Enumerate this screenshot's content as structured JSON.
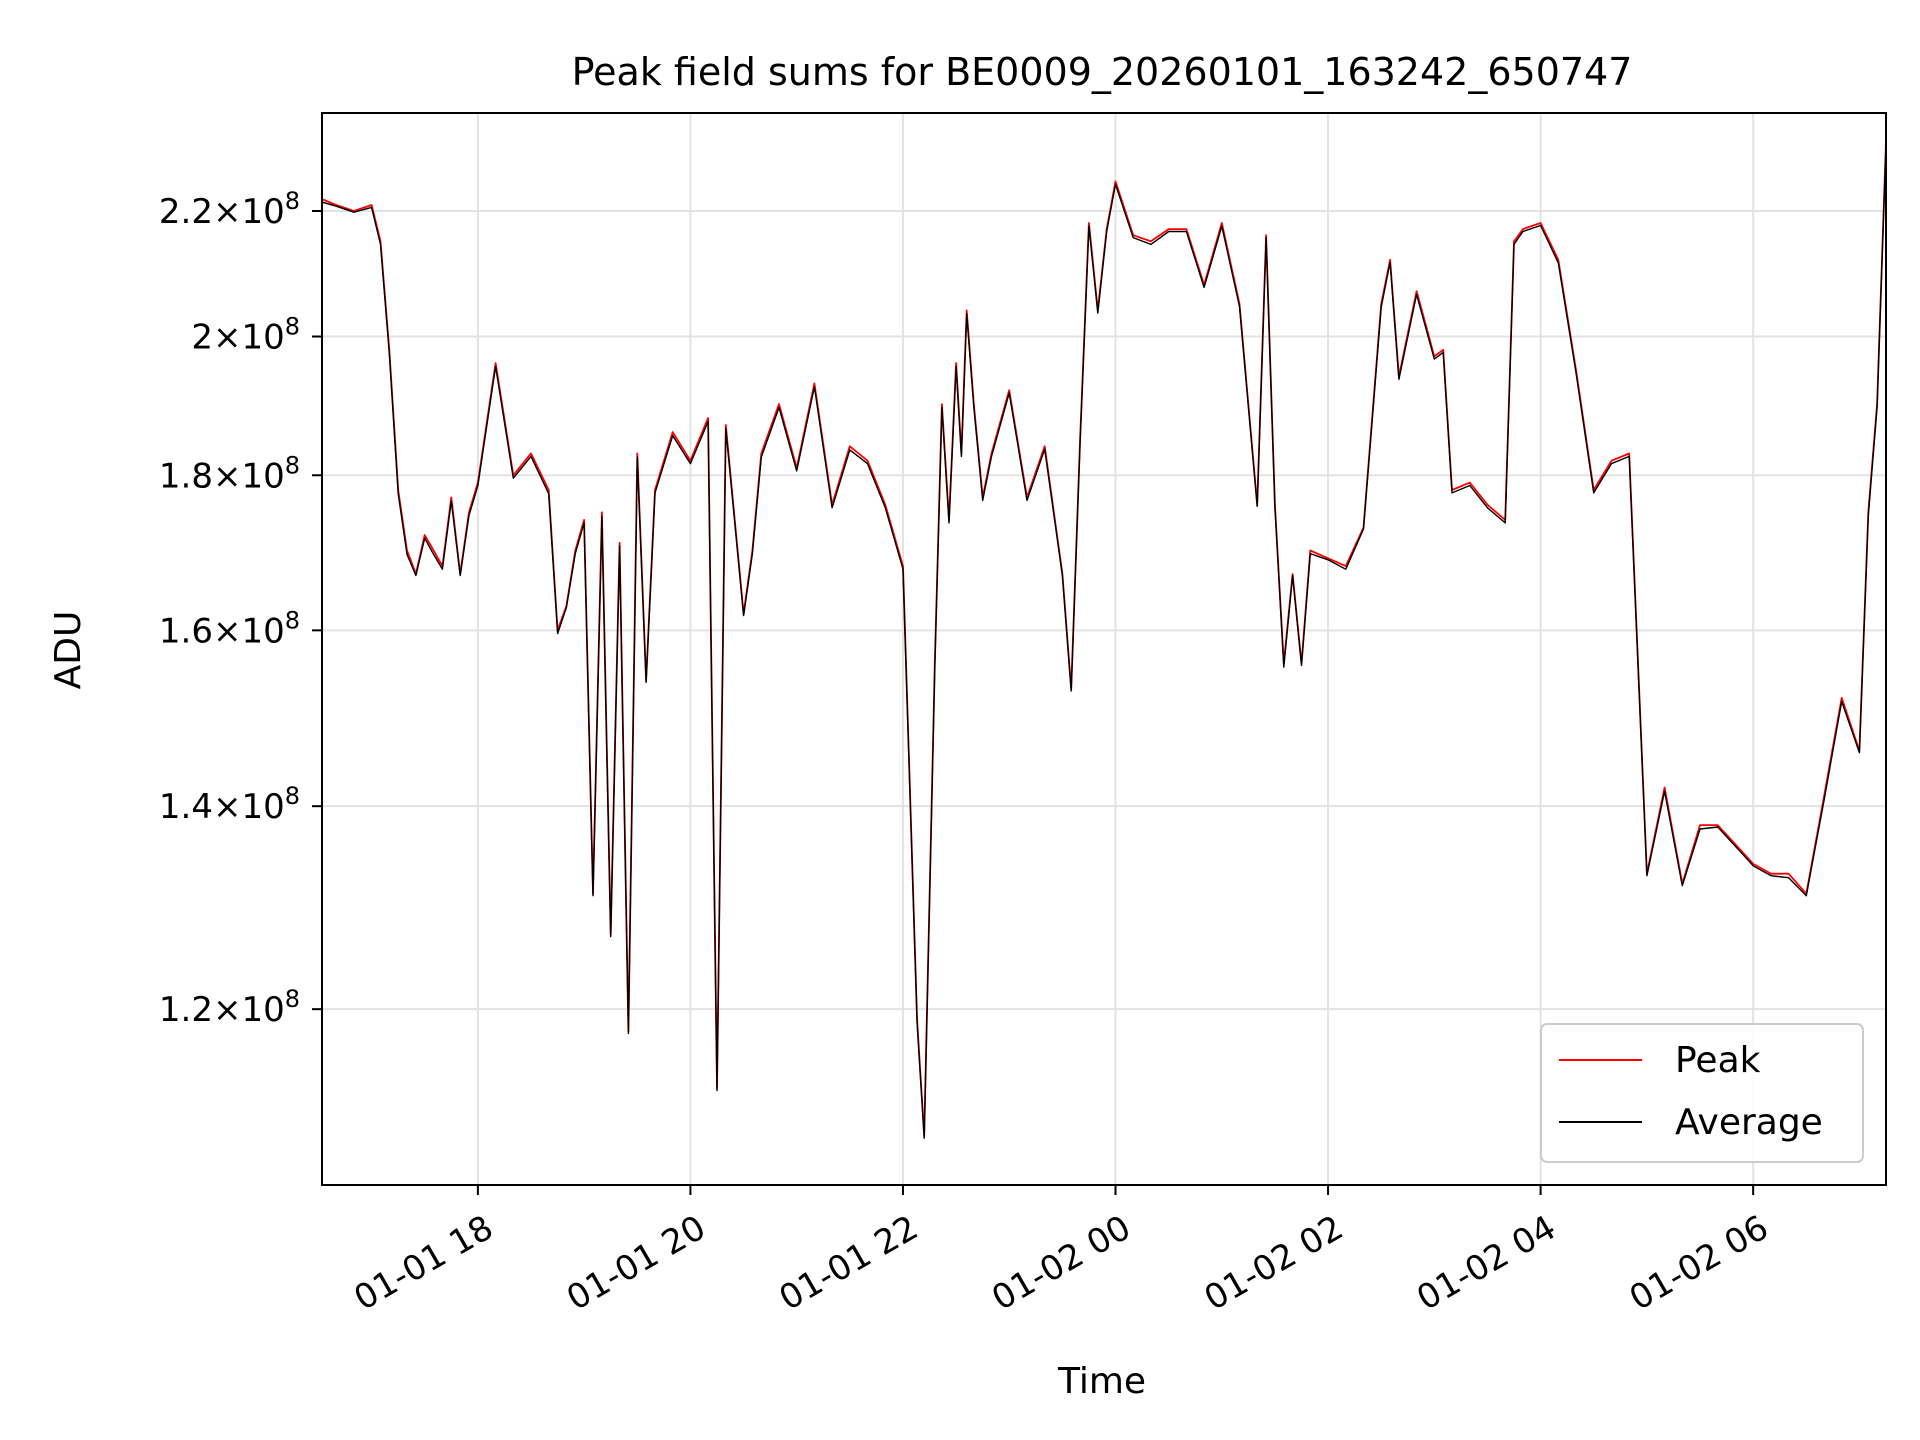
{
  "chart_data": {
    "type": "line",
    "title": "Peak field sums for BE0009_20260101_163242_650747",
    "xlabel": "Time",
    "ylabel": "ADU",
    "x_range": [
      "2026-01-01 16:32",
      "2026-01-02 07:15"
    ],
    "ylim": [
      105000000,
      237000000
    ],
    "yscale": "log",
    "grid": true,
    "legend_position": "lower-right",
    "x_ticks": [
      {
        "value": "2026-01-01 18:00",
        "label": "01-01 18"
      },
      {
        "value": "2026-01-01 20:00",
        "label": "01-01 20"
      },
      {
        "value": "2026-01-01 22:00",
        "label": "01-01 22"
      },
      {
        "value": "2026-01-02 00:00",
        "label": "01-02 00"
      },
      {
        "value": "2026-01-02 02:00",
        "label": "01-02 02"
      },
      {
        "value": "2026-01-02 04:00",
        "label": "01-02 04"
      },
      {
        "value": "2026-01-02 06:00",
        "label": "01-02 06"
      }
    ],
    "y_ticks": [
      {
        "value": 120000000,
        "mantissa": "1.2",
        "exp": "8"
      },
      {
        "value": 140000000,
        "mantissa": "1.4",
        "exp": "8"
      },
      {
        "value": 160000000,
        "mantissa": "1.6",
        "exp": "8"
      },
      {
        "value": 180000000,
        "mantissa": "1.8",
        "exp": "8"
      },
      {
        "value": 200000000,
        "mantissa": "2",
        "exp": "8"
      },
      {
        "value": 220000000,
        "mantissa": "2.2",
        "exp": "8"
      }
    ],
    "x": [
      "2026-01-01 16:32",
      "2026-01-01 16:40",
      "2026-01-01 16:50",
      "2026-01-01 17:00",
      "2026-01-01 17:05",
      "2026-01-01 17:10",
      "2026-01-01 17:15",
      "2026-01-01 17:20",
      "2026-01-01 17:25",
      "2026-01-01 17:30",
      "2026-01-01 17:35",
      "2026-01-01 17:40",
      "2026-01-01 17:45",
      "2026-01-01 17:50",
      "2026-01-01 17:55",
      "2026-01-01 18:00",
      "2026-01-01 18:10",
      "2026-01-01 18:20",
      "2026-01-01 18:30",
      "2026-01-01 18:40",
      "2026-01-01 18:45",
      "2026-01-01 18:50",
      "2026-01-01 18:55",
      "2026-01-01 19:00",
      "2026-01-01 19:05",
      "2026-01-01 19:10",
      "2026-01-01 19:15",
      "2026-01-01 19:20",
      "2026-01-01 19:25",
      "2026-01-01 19:30",
      "2026-01-01 19:35",
      "2026-01-01 19:40",
      "2026-01-01 19:50",
      "2026-01-01 20:00",
      "2026-01-01 20:10",
      "2026-01-01 20:15",
      "2026-01-01 20:20",
      "2026-01-01 20:30",
      "2026-01-01 20:35",
      "2026-01-01 20:40",
      "2026-01-01 20:50",
      "2026-01-01 21:00",
      "2026-01-01 21:10",
      "2026-01-01 21:20",
      "2026-01-01 21:30",
      "2026-01-01 21:40",
      "2026-01-01 21:50",
      "2026-01-01 22:00",
      "2026-01-01 22:08",
      "2026-01-01 22:12",
      "2026-01-01 22:18",
      "2026-01-01 22:22",
      "2026-01-01 22:26",
      "2026-01-01 22:30",
      "2026-01-01 22:33",
      "2026-01-01 22:36",
      "2026-01-01 22:40",
      "2026-01-01 22:45",
      "2026-01-01 22:50",
      "2026-01-01 23:00",
      "2026-01-01 23:10",
      "2026-01-01 23:20",
      "2026-01-01 23:30",
      "2026-01-01 23:35",
      "2026-01-01 23:40",
      "2026-01-01 23:45",
      "2026-01-01 23:50",
      "2026-01-01 23:55",
      "2026-01-02 00:00",
      "2026-01-02 00:10",
      "2026-01-02 00:20",
      "2026-01-02 00:30",
      "2026-01-02 00:40",
      "2026-01-02 00:50",
      "2026-01-02 01:00",
      "2026-01-02 01:10",
      "2026-01-02 01:20",
      "2026-01-02 01:25",
      "2026-01-02 01:30",
      "2026-01-02 01:35",
      "2026-01-02 01:40",
      "2026-01-02 01:45",
      "2026-01-02 01:50",
      "2026-01-02 02:00",
      "2026-01-02 02:10",
      "2026-01-02 02:20",
      "2026-01-02 02:30",
      "2026-01-02 02:35",
      "2026-01-02 02:40",
      "2026-01-02 02:50",
      "2026-01-02 03:00",
      "2026-01-02 03:05",
      "2026-01-02 03:10",
      "2026-01-02 03:20",
      "2026-01-02 03:30",
      "2026-01-02 03:40",
      "2026-01-02 03:45",
      "2026-01-02 03:50",
      "2026-01-02 04:00",
      "2026-01-02 04:10",
      "2026-01-02 04:20",
      "2026-01-02 04:30",
      "2026-01-02 04:40",
      "2026-01-02 04:50",
      "2026-01-02 05:00",
      "2026-01-02 05:10",
      "2026-01-02 05:20",
      "2026-01-02 05:30",
      "2026-01-02 05:40",
      "2026-01-02 05:50",
      "2026-01-02 06:00",
      "2026-01-02 06:10",
      "2026-01-02 06:20",
      "2026-01-02 06:30",
      "2026-01-02 06:40",
      "2026-01-02 06:50",
      "2026-01-02 07:00",
      "2026-01-02 07:05",
      "2026-01-02 07:10",
      "2026-01-02 07:15"
    ],
    "series": [
      {
        "name": "Peak",
        "color": "#ff0000",
        "values": [
          222,
          221,
          220,
          221,
          215,
          198,
          178,
          170,
          167,
          172,
          170,
          168,
          177,
          167,
          175,
          179,
          196,
          180,
          183,
          178,
          160,
          163,
          170,
          174,
          131,
          175,
          127,
          171,
          118,
          183,
          154,
          178,
          186,
          182,
          188,
          113,
          187,
          162,
          170,
          183,
          190,
          181,
          193,
          176,
          184,
          182,
          176,
          168,
          119,
          109,
          156,
          190,
          174,
          196,
          183,
          204,
          190,
          177,
          183,
          192,
          177,
          184,
          167,
          153,
          185,
          218,
          204,
          217,
          225,
          216,
          215,
          217,
          217,
          208,
          218,
          205,
          176,
          216,
          176,
          156,
          167,
          156,
          170,
          169,
          168,
          173,
          205,
          212,
          194,
          207,
          197,
          198,
          178,
          179,
          176,
          174,
          215,
          217,
          218,
          212,
          195,
          178,
          182,
          183,
          133,
          142,
          132,
          138,
          138,
          136,
          134,
          133,
          133,
          131,
          141,
          152,
          146,
          175,
          190,
          232
        ]
      },
      {
        "name": "Average",
        "color": "#000000",
        "values": [
          221.5,
          220.8,
          219.8,
          220.6,
          214.5,
          197.5,
          177.5,
          169.5,
          166.8,
          171.6,
          169.5,
          167.6,
          176.5,
          166.8,
          174.6,
          178.6,
          195.5,
          179.6,
          182.6,
          177.5,
          159.6,
          162.8,
          169.6,
          173.6,
          130.8,
          174.5,
          126.8,
          170.6,
          117.8,
          182.5,
          153.8,
          177.6,
          185.5,
          181.6,
          187.5,
          112.8,
          186.5,
          161.8,
          169.6,
          182.5,
          189.5,
          180.6,
          192.5,
          175.6,
          183.5,
          181.6,
          175.6,
          167.6,
          118.8,
          108.8,
          155.6,
          189.5,
          173.6,
          195.5,
          182.6,
          203.5,
          189.6,
          176.6,
          182.6,
          191.6,
          176.6,
          183.6,
          166.8,
          152.8,
          184.6,
          217.5,
          203.6,
          216.6,
          224.5,
          215.6,
          214.5,
          216.6,
          216.6,
          207.6,
          217.5,
          204.6,
          175.8,
          215.6,
          175.8,
          155.6,
          166.8,
          155.8,
          169.6,
          168.8,
          167.6,
          172.8,
          204.5,
          211.6,
          193.6,
          206.5,
          196.6,
          197.6,
          177.6,
          178.6,
          175.6,
          173.6,
          214.5,
          216.6,
          217.6,
          211.5,
          194.6,
          177.6,
          181.6,
          182.6,
          132.8,
          141.6,
          131.8,
          137.6,
          137.8,
          135.8,
          133.8,
          132.8,
          132.6,
          130.8,
          140.6,
          151.6,
          145.8,
          174.6,
          189.6,
          231.5
        ]
      }
    ]
  }
}
